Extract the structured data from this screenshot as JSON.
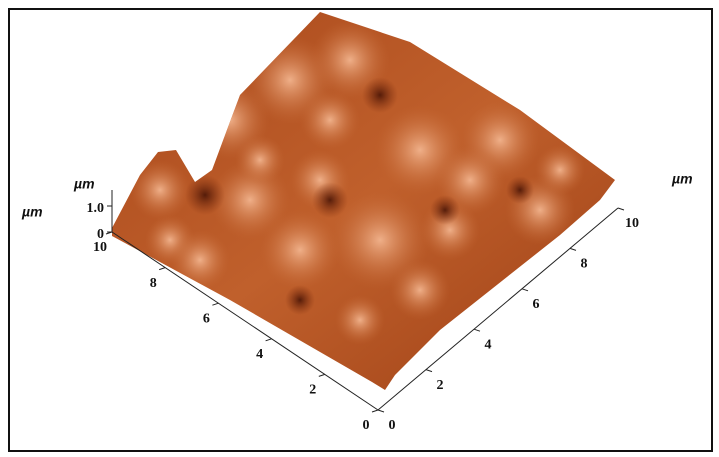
{
  "axes": {
    "left": {
      "unit": "µm",
      "ticks": [
        "0",
        "2",
        "4",
        "6",
        "8",
        "10"
      ]
    },
    "right": {
      "unit": "µm",
      "ticks": [
        "0",
        "2",
        "4",
        "6",
        "8",
        "10"
      ]
    },
    "z": {
      "unit": "µm",
      "ticks": [
        "0",
        "1.0"
      ]
    }
  }
}
